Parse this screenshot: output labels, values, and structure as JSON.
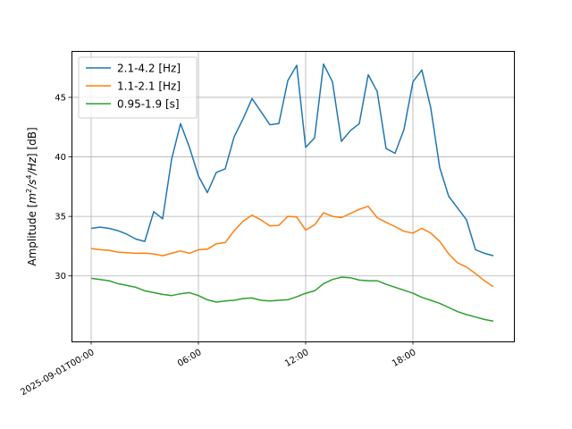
{
  "chart_data": {
    "type": "line",
    "title": "",
    "xlabel": "",
    "ylabel_parts": [
      "Amplitude [",
      "m",
      "2",
      "/",
      "s",
      "4",
      "/Hz",
      "] [dB]"
    ],
    "x_ticks": [
      {
        "hour": 0,
        "label": "2025-09-01T00:00"
      },
      {
        "hour": 6,
        "label": "06:00"
      },
      {
        "hour": 12,
        "label": "12:00"
      },
      {
        "hour": 18,
        "label": "18:00"
      }
    ],
    "y_ticks": [
      30,
      35,
      40,
      45
    ],
    "xlim_hours": [
      -1.1,
      23.65
    ],
    "ylim": [
      24.5,
      48.9
    ],
    "grid": true,
    "legend_position": "top-left",
    "x_hours": [
      0,
      0.5,
      1,
      1.5,
      2,
      2.5,
      3,
      3.5,
      4,
      4.5,
      5,
      5.5,
      6,
      6.5,
      7,
      7.5,
      8,
      8.5,
      9,
      9.5,
      10,
      10.5,
      11,
      11.5,
      12,
      12.5,
      13,
      13.5,
      14,
      14.5,
      15,
      15.5,
      16,
      16.5,
      17,
      17.5,
      18,
      18.5,
      19,
      19.5,
      20,
      20.5,
      21,
      21.5,
      22,
      22.5
    ],
    "series": [
      {
        "name": "2.1-4.2 [Hz]",
        "color": "#1f77b4",
        "values": [
          34.0,
          34.1,
          34.0,
          33.8,
          33.5,
          33.1,
          32.9,
          35.4,
          34.8,
          39.8,
          42.8,
          40.8,
          38.4,
          37.0,
          38.7,
          39.0,
          41.7,
          43.2,
          44.9,
          43.8,
          42.7,
          42.8,
          46.4,
          47.7,
          40.8,
          41.6,
          47.8,
          46.3,
          41.3,
          42.2,
          42.8,
          46.9,
          45.5,
          40.7,
          40.3,
          42.3,
          46.3,
          47.3,
          44.1,
          39.1,
          36.7,
          35.7,
          34.7,
          32.2,
          31.9,
          31.7
        ]
      },
      {
        "name": "1.1-2.1 [Hz]",
        "color": "#ff7f0e",
        "values": [
          32.3,
          32.2,
          32.15,
          32.0,
          31.95,
          31.9,
          31.92,
          31.85,
          31.7,
          31.9,
          32.1,
          31.9,
          32.2,
          32.25,
          32.7,
          32.8,
          33.8,
          34.6,
          35.1,
          34.7,
          34.2,
          34.25,
          35.0,
          34.95,
          33.85,
          34.3,
          35.3,
          35.0,
          34.9,
          35.25,
          35.6,
          35.85,
          34.9,
          34.5,
          34.15,
          33.75,
          33.6,
          34.0,
          33.6,
          32.9,
          31.85,
          31.1,
          30.75,
          30.2,
          29.6,
          29.1
        ]
      },
      {
        "name": "0.95-1.9 [s]",
        "color": "#2ca02c",
        "values": [
          29.8,
          29.7,
          29.6,
          29.35,
          29.2,
          29.05,
          28.75,
          28.6,
          28.45,
          28.35,
          28.5,
          28.6,
          28.35,
          28.0,
          27.8,
          27.9,
          27.95,
          28.1,
          28.15,
          27.95,
          27.9,
          27.95,
          28.0,
          28.25,
          28.55,
          28.75,
          29.35,
          29.7,
          29.9,
          29.85,
          29.65,
          29.6,
          29.6,
          29.3,
          29.05,
          28.8,
          28.55,
          28.2,
          27.95,
          27.7,
          27.35,
          27.0,
          26.75,
          26.55,
          26.35,
          26.2
        ]
      }
    ]
  }
}
